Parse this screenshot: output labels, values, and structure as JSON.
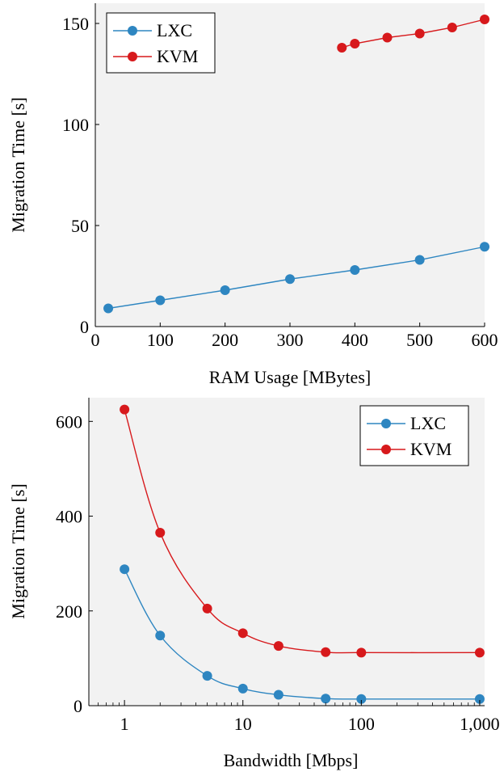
{
  "colors": {
    "lxc": "#2e86c1",
    "kvm": "#d7191c",
    "plot_bg": "#f2f2f2"
  },
  "chart_data": [
    {
      "type": "line",
      "xlabel": "RAM Usage [MBytes]",
      "ylabel": "Migration Time [s]",
      "xlim": [
        0,
        600
      ],
      "ylim": [
        0,
        160
      ],
      "xticks": [
        0,
        100,
        200,
        300,
        400,
        500,
        600
      ],
      "yticks": [
        0,
        50,
        100,
        150
      ],
      "legend": "top-left",
      "series": [
        {
          "name": "LXC",
          "x": [
            20,
            100,
            200,
            300,
            400,
            500,
            600
          ],
          "y": [
            9,
            13,
            18,
            23.5,
            28,
            33,
            39.5
          ]
        },
        {
          "name": "KVM",
          "x": [
            380,
            400,
            450,
            500,
            550,
            600
          ],
          "y": [
            138,
            140,
            143,
            145,
            148,
            152
          ]
        }
      ]
    },
    {
      "type": "line",
      "xlabel": "Bandwidth [Mbps]",
      "ylabel": "Migration Time [s]",
      "xscale": "log",
      "xlim": [
        0.5,
        1100
      ],
      "ylim": [
        0,
        650
      ],
      "xticks": [
        1,
        10,
        100,
        1000
      ],
      "xtick_labels": [
        "1",
        "10",
        "100",
        "1,000"
      ],
      "yticks": [
        0,
        200,
        400,
        600
      ],
      "legend": "top-right",
      "series": [
        {
          "name": "LXC",
          "x": [
            1,
            2,
            5,
            10,
            20,
            50,
            100,
            1000
          ],
          "y": [
            288,
            148,
            63,
            36,
            23,
            15,
            14,
            14
          ]
        },
        {
          "name": "KVM",
          "x": [
            1,
            2,
            5,
            10,
            20,
            50,
            100,
            1000
          ],
          "y": [
            625,
            365,
            205,
            153,
            126,
            113,
            112,
            112
          ]
        }
      ]
    }
  ]
}
